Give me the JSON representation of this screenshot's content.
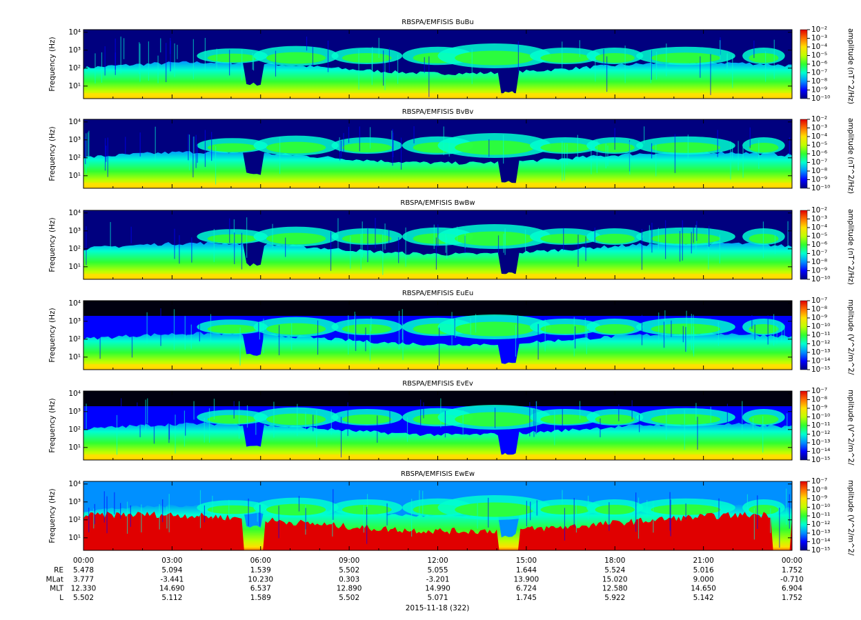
{
  "chart_data": [
    {
      "type": "spectrogram",
      "title": "RBSPA/EMFISIS  BuBu",
      "y_label": "Frequency (Hz)",
      "log_y": true,
      "ylim": [
        2,
        14000
      ],
      "yticks": [
        {
          "value": 10,
          "label": "10¹"
        },
        {
          "value": 100,
          "label": "10²"
        },
        {
          "value": 1000,
          "label": "10³"
        },
        {
          "value": 10000,
          "label": "10⁴"
        }
      ],
      "z_label": "amplitude (nT^2/Hz)",
      "zlim": [
        1e-10,
        0.01
      ],
      "zticks": [
        {
          "value": 0.01,
          "label": "10⁻²"
        },
        {
          "value": 0.001,
          "label": "10⁻³"
        },
        {
          "value": 0.0001,
          "label": "10⁻⁴"
        },
        {
          "value": 1e-05,
          "label": "10⁻⁵"
        },
        {
          "value": 1e-06,
          "label": "10⁻⁶"
        },
        {
          "value": 1e-07,
          "label": "10⁻⁷"
        },
        {
          "value": 1e-08,
          "label": "10⁻⁸"
        },
        {
          "value": 1e-09,
          "label": "10⁻⁹"
        },
        {
          "value": 1e-10,
          "label": "10⁻¹⁰"
        }
      ],
      "colormap": [
        "#00007f",
        "#0000ff",
        "#0090ff",
        "#00ffd0",
        "#30ff30",
        "#c0ff00",
        "#ffe000",
        "#ff7000",
        "#e00000"
      ],
      "xlim": [
        0,
        24
      ]
    },
    {
      "type": "spectrogram",
      "title": "RBSPA/EMFISIS  BvBv",
      "y_label": "Frequency (Hz)",
      "log_y": true,
      "ylim": [
        2,
        14000
      ],
      "yticks": [
        {
          "value": 10,
          "label": "10¹"
        },
        {
          "value": 100,
          "label": "10²"
        },
        {
          "value": 1000,
          "label": "10³"
        },
        {
          "value": 10000,
          "label": "10⁴"
        }
      ],
      "z_label": "amplitude (nT^2/Hz)",
      "zlim": [
        1e-10,
        0.01
      ],
      "zticks": [
        {
          "value": 0.01,
          "label": "10⁻²"
        },
        {
          "value": 0.001,
          "label": "10⁻³"
        },
        {
          "value": 0.0001,
          "label": "10⁻⁴"
        },
        {
          "value": 1e-05,
          "label": "10⁻⁵"
        },
        {
          "value": 1e-06,
          "label": "10⁻⁶"
        },
        {
          "value": 1e-07,
          "label": "10⁻⁷"
        },
        {
          "value": 1e-08,
          "label": "10⁻⁸"
        },
        {
          "value": 1e-09,
          "label": "10⁻⁹"
        },
        {
          "value": 1e-10,
          "label": "10⁻¹⁰"
        }
      ],
      "colormap": [
        "#00007f",
        "#0000ff",
        "#0090ff",
        "#00ffd0",
        "#30ff30",
        "#c0ff00",
        "#ffe000",
        "#ff7000",
        "#e00000"
      ],
      "xlim": [
        0,
        24
      ]
    },
    {
      "type": "spectrogram",
      "title": "RBSPA/EMFISIS  BwBw",
      "y_label": "Frequency (Hz)",
      "log_y": true,
      "ylim": [
        2,
        14000
      ],
      "yticks": [
        {
          "value": 10,
          "label": "10¹"
        },
        {
          "value": 100,
          "label": "10²"
        },
        {
          "value": 1000,
          "label": "10³"
        },
        {
          "value": 10000,
          "label": "10⁴"
        }
      ],
      "z_label": "amplitude (nT^2/Hz)",
      "zlim": [
        1e-10,
        0.01
      ],
      "zticks": [
        {
          "value": 0.01,
          "label": "10⁻²"
        },
        {
          "value": 0.001,
          "label": "10⁻³"
        },
        {
          "value": 0.0001,
          "label": "10⁻⁴"
        },
        {
          "value": 1e-05,
          "label": "10⁻⁵"
        },
        {
          "value": 1e-06,
          "label": "10⁻⁶"
        },
        {
          "value": 1e-07,
          "label": "10⁻⁷"
        },
        {
          "value": 1e-08,
          "label": "10⁻⁸"
        },
        {
          "value": 1e-09,
          "label": "10⁻⁹"
        },
        {
          "value": 1e-10,
          "label": "10⁻¹⁰"
        }
      ],
      "colormap": [
        "#00007f",
        "#0000ff",
        "#0090ff",
        "#00ffd0",
        "#30ff30",
        "#c0ff00",
        "#ffe000",
        "#ff7000",
        "#e00000"
      ],
      "xlim": [
        0,
        24
      ]
    },
    {
      "type": "spectrogram",
      "title": "RBSPA/EMFISIS  EuEu",
      "y_label": "Frequency (Hz)",
      "log_y": true,
      "ylim": [
        2,
        14000
      ],
      "yticks": [
        {
          "value": 10,
          "label": "10¹"
        },
        {
          "value": 100,
          "label": "10²"
        },
        {
          "value": 1000,
          "label": "10³"
        },
        {
          "value": 10000,
          "label": "10⁴"
        }
      ],
      "z_label": "mplitude (V^2/m^2/",
      "zlim": [
        1e-15,
        1e-07
      ],
      "zticks": [
        {
          "value": 1e-07,
          "label": "10⁻⁷"
        },
        {
          "value": 1e-08,
          "label": "10⁻⁸"
        },
        {
          "value": 1e-09,
          "label": "10⁻⁹"
        },
        {
          "value": 1e-10,
          "label": "10⁻¹⁰"
        },
        {
          "value": 1e-11,
          "label": "10⁻¹¹"
        },
        {
          "value": 1e-12,
          "label": "10⁻¹²"
        },
        {
          "value": 1e-13,
          "label": "10⁻¹³"
        },
        {
          "value": 1e-14,
          "label": "10⁻¹⁴"
        },
        {
          "value": 1e-15,
          "label": "10⁻¹⁵"
        }
      ],
      "colormap": [
        "#00007f",
        "#0000ff",
        "#0090ff",
        "#00ffd0",
        "#30ff30",
        "#c0ff00",
        "#ffe000",
        "#ff7000",
        "#e00000"
      ],
      "xlim": [
        0,
        24
      ]
    },
    {
      "type": "spectrogram",
      "title": "RBSPA/EMFISIS  EvEv",
      "y_label": "Frequency (Hz)",
      "log_y": true,
      "ylim": [
        2,
        14000
      ],
      "yticks": [
        {
          "value": 10,
          "label": "10¹"
        },
        {
          "value": 100,
          "label": "10²"
        },
        {
          "value": 1000,
          "label": "10³"
        },
        {
          "value": 10000,
          "label": "10⁴"
        }
      ],
      "z_label": "mplitude (V^2/m^2/",
      "zlim": [
        1e-15,
        1e-07
      ],
      "zticks": [
        {
          "value": 1e-07,
          "label": "10⁻⁷"
        },
        {
          "value": 1e-08,
          "label": "10⁻⁸"
        },
        {
          "value": 1e-09,
          "label": "10⁻⁹"
        },
        {
          "value": 1e-10,
          "label": "10⁻¹⁰"
        },
        {
          "value": 1e-11,
          "label": "10⁻¹¹"
        },
        {
          "value": 1e-12,
          "label": "10⁻¹²"
        },
        {
          "value": 1e-13,
          "label": "10⁻¹³"
        },
        {
          "value": 1e-14,
          "label": "10⁻¹⁴"
        },
        {
          "value": 1e-15,
          "label": "10⁻¹⁵"
        }
      ],
      "colormap": [
        "#00007f",
        "#0000ff",
        "#0090ff",
        "#00ffd0",
        "#30ff30",
        "#c0ff00",
        "#ffe000",
        "#ff7000",
        "#e00000"
      ],
      "xlim": [
        0,
        24
      ]
    },
    {
      "type": "spectrogram",
      "title": "RBSPA/EMFISIS  EwEw",
      "y_label": "Frequency (Hz)",
      "log_y": true,
      "ylim": [
        2,
        14000
      ],
      "yticks": [
        {
          "value": 10,
          "label": "10¹"
        },
        {
          "value": 100,
          "label": "10²"
        },
        {
          "value": 1000,
          "label": "10³"
        },
        {
          "value": 10000,
          "label": "10⁴"
        }
      ],
      "z_label": "mplitude (V^2/m^2/",
      "zlim": [
        1e-15,
        1e-07
      ],
      "zticks": [
        {
          "value": 1e-07,
          "label": "10⁻⁷"
        },
        {
          "value": 1e-08,
          "label": "10⁻⁸"
        },
        {
          "value": 1e-09,
          "label": "10⁻⁹"
        },
        {
          "value": 1e-10,
          "label": "10⁻¹⁰"
        },
        {
          "value": 1e-11,
          "label": "10⁻¹¹"
        },
        {
          "value": 1e-12,
          "label": "10⁻¹²"
        },
        {
          "value": 1e-13,
          "label": "10⁻¹³"
        },
        {
          "value": 1e-14,
          "label": "10⁻¹⁴"
        },
        {
          "value": 1e-15,
          "label": "10⁻¹⁵"
        }
      ],
      "colormap": [
        "#00007f",
        "#0000ff",
        "#0090ff",
        "#00ffd0",
        "#30ff30",
        "#c0ff00",
        "#ffe000",
        "#ff7000",
        "#e00000"
      ],
      "xlim": [
        0,
        24
      ],
      "xticks": [
        {
          "value": 0,
          "label": "00:00"
        },
        {
          "value": 3,
          "label": "03:00"
        },
        {
          "value": 6,
          "label": "06:00"
        },
        {
          "value": 9,
          "label": "09:00"
        },
        {
          "value": 12,
          "label": "12:00"
        },
        {
          "value": 15,
          "label": "15:00"
        },
        {
          "value": 18,
          "label": "18:00"
        },
        {
          "value": 21,
          "label": "21:00"
        },
        {
          "value": 24,
          "label": "00:00"
        }
      ]
    }
  ],
  "ephemeris": {
    "rows": [
      {
        "label": "RE",
        "values": [
          "5.478",
          "5.094",
          "1.539",
          "5.502",
          "5.055",
          "1.644",
          "5.524",
          "5.016",
          "1.752"
        ]
      },
      {
        "label": "MLat",
        "values": [
          "3.777",
          "-3.441",
          "10.230",
          "0.303",
          "-3.201",
          "13.900",
          "15.020",
          "9.000",
          "-0.710"
        ]
      },
      {
        "label": "MLT",
        "values": [
          "12.330",
          "14.690",
          "6.537",
          "12.890",
          "14.990",
          "6.724",
          "12.580",
          "14.650",
          "6.904"
        ]
      },
      {
        "label": "L",
        "values": [
          "5.502",
          "5.112",
          "1.589",
          "5.502",
          "5.071",
          "1.745",
          "5.922",
          "5.142",
          "1.752"
        ]
      }
    ],
    "date": "2015-11-18 (322)"
  }
}
